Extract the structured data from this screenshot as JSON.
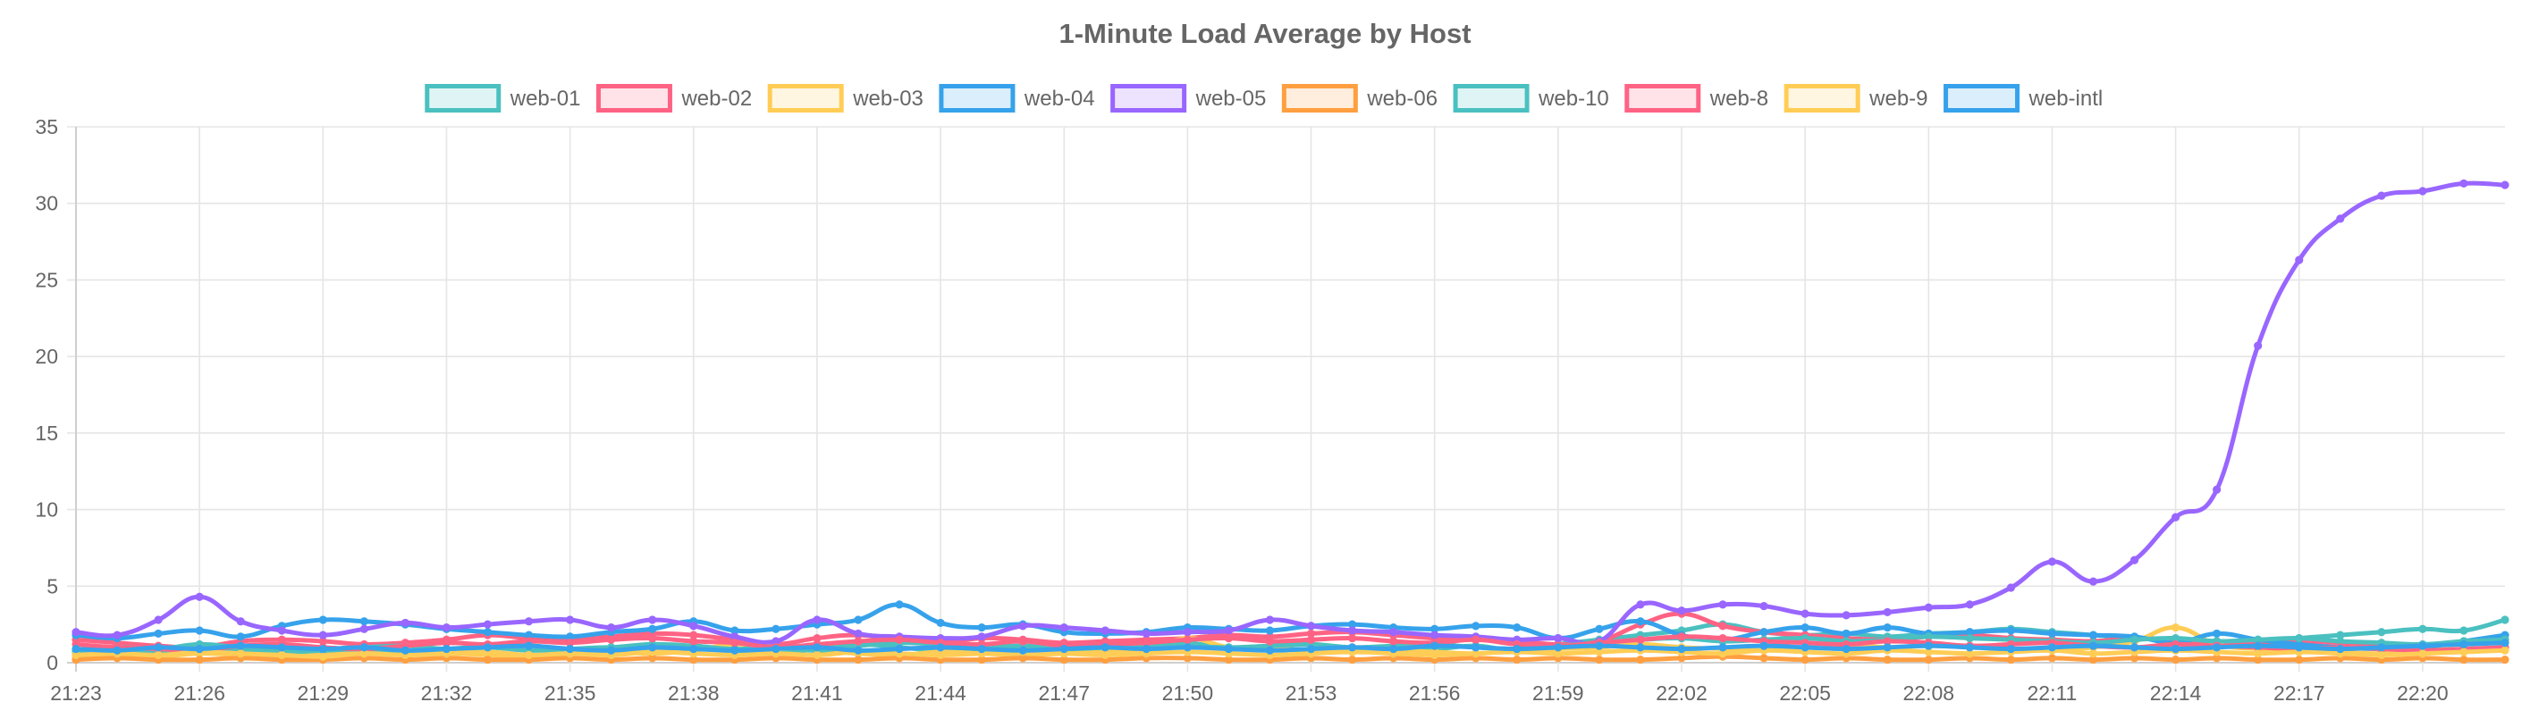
{
  "chart_data": {
    "type": "line",
    "title": "1-Minute Load Average by Host",
    "xlabel": "",
    "ylabel": "",
    "ylim": [
      0,
      35
    ],
    "yticks": [
      "0",
      "5",
      "10",
      "15",
      "20",
      "25",
      "30",
      "35"
    ],
    "xtick_labels": [
      "21:23",
      "21:26",
      "21:29",
      "21:32",
      "21:35",
      "21:38",
      "21:41",
      "21:44",
      "21:47",
      "21:50",
      "21:53",
      "21:56",
      "21:59",
      "22:02",
      "22:05",
      "22:08",
      "22:11",
      "22:14",
      "22:17",
      "22:20"
    ],
    "x": [
      "21:23",
      "21:24",
      "21:25",
      "21:26",
      "21:27",
      "21:28",
      "21:29",
      "21:30",
      "21:31",
      "21:32",
      "21:33",
      "21:34",
      "21:35",
      "21:36",
      "21:37",
      "21:38",
      "21:39",
      "21:40",
      "21:41",
      "21:42",
      "21:43",
      "21:44",
      "21:45",
      "21:46",
      "21:47",
      "21:48",
      "21:49",
      "21:50",
      "21:51",
      "21:52",
      "21:53",
      "21:54",
      "21:55",
      "21:56",
      "21:57",
      "21:58",
      "21:59",
      "22:00",
      "22:01",
      "22:02",
      "22:03",
      "22:04",
      "22:05",
      "22:06",
      "22:07",
      "22:08",
      "22:09",
      "22:10",
      "22:11",
      "22:12",
      "22:13",
      "22:14",
      "22:15",
      "22:16",
      "22:17",
      "22:18",
      "22:19",
      "22:20",
      "22:21",
      "22:22"
    ],
    "grid": true,
    "legend_position": "top",
    "series": [
      {
        "name": "web-01",
        "color": "#4bc0c0",
        "values": [
          0.6,
          0.8,
          0.7,
          0.9,
          0.8,
          0.7,
          0.6,
          0.8,
          0.7,
          0.9,
          1.0,
          0.8,
          0.9,
          1.0,
          0.8,
          1.1,
          0.7,
          0.6,
          0.9,
          1.2,
          1.0,
          0.8,
          0.9,
          1.0,
          0.8,
          0.9,
          1.1,
          1.3,
          0.9,
          1.0,
          1.2,
          0.9,
          1.0,
          0.9,
          1.1,
          0.8,
          1.2,
          1.5,
          1.8,
          2.1,
          2.5,
          2.0,
          1.8,
          1.9,
          1.7,
          1.9,
          2.0,
          2.2,
          2.0,
          1.8,
          1.6,
          1.5,
          1.4,
          1.3,
          1.6,
          1.8,
          2.0,
          2.2,
          2.1,
          2.8
        ]
      },
      {
        "name": "web-02",
        "color": "#ff6384",
        "values": [
          1.5,
          1.3,
          1.1,
          1.0,
          1.4,
          1.5,
          1.4,
          1.2,
          1.3,
          1.5,
          1.8,
          1.6,
          1.5,
          1.7,
          1.9,
          1.8,
          1.5,
          1.2,
          1.6,
          1.8,
          1.5,
          1.3,
          1.6,
          1.5,
          1.3,
          1.4,
          1.5,
          1.6,
          1.8,
          1.7,
          1.9,
          2.0,
          1.8,
          1.6,
          1.5,
          1.4,
          1.2,
          1.4,
          2.5,
          3.2,
          2.4,
          2.0,
          1.8,
          1.6,
          1.5,
          1.7,
          1.8,
          1.6,
          1.5,
          1.4,
          1.6,
          1.5,
          1.3,
          1.2,
          1.4,
          1.3,
          1.2,
          1.1,
          1.3,
          1.5
        ]
      },
      {
        "name": "web-03",
        "color": "#ffcd56",
        "values": [
          0.4,
          0.5,
          0.4,
          0.6,
          0.5,
          0.4,
          0.5,
          0.6,
          0.5,
          0.6,
          0.5,
          0.4,
          0.6,
          0.7,
          0.6,
          0.8,
          1.2,
          1.0,
          0.8,
          0.6,
          0.5,
          0.7,
          0.6,
          0.5,
          0.6,
          0.7,
          0.8,
          1.6,
          1.0,
          0.9,
          0.8,
          0.7,
          0.8,
          0.7,
          0.6,
          0.8,
          0.9,
          1.0,
          1.2,
          1.0,
          0.9,
          0.8,
          1.0,
          1.2,
          1.0,
          1.1,
          1.0,
          0.9,
          0.8,
          1.0,
          1.4,
          2.3,
          1.2,
          0.9,
          0.8,
          0.7,
          0.6,
          0.8,
          0.9,
          1.0
        ]
      },
      {
        "name": "web-04",
        "color": "#36a2eb",
        "values": [
          1.8,
          1.6,
          1.9,
          2.1,
          1.7,
          2.4,
          2.8,
          2.7,
          2.5,
          2.2,
          2.0,
          1.8,
          1.7,
          2.0,
          2.2,
          2.7,
          2.1,
          2.2,
          2.5,
          2.8,
          3.8,
          2.6,
          2.3,
          2.5,
          2.0,
          1.9,
          2.0,
          2.3,
          2.2,
          2.1,
          2.4,
          2.5,
          2.3,
          2.2,
          2.4,
          2.3,
          1.6,
          2.2,
          2.7,
          1.8,
          1.5,
          2.0,
          2.3,
          1.9,
          2.3,
          1.9,
          2.0,
          2.1,
          1.9,
          1.8,
          1.7,
          1.3,
          1.9,
          1.5,
          1.2,
          1.0,
          0.9,
          1.0,
          1.4,
          1.8
        ]
      },
      {
        "name": "web-05",
        "color": "#9966ff",
        "values": [
          2.0,
          1.8,
          2.8,
          4.3,
          2.7,
          2.1,
          1.8,
          2.2,
          2.6,
          2.3,
          2.5,
          2.7,
          2.8,
          2.3,
          2.8,
          2.4,
          1.7,
          1.4,
          2.8,
          1.9,
          1.7,
          1.6,
          1.7,
          2.4,
          2.3,
          2.1,
          1.9,
          2.0,
          2.1,
          2.8,
          2.4,
          2.1,
          2.0,
          1.8,
          1.7,
          1.5,
          1.6,
          1.4,
          3.8,
          3.4,
          3.8,
          3.7,
          3.2,
          3.1,
          3.3,
          3.6,
          3.8,
          4.9,
          6.6,
          5.3,
          6.7,
          9.5,
          11.3,
          20.7,
          26.3,
          29.0,
          30.5,
          30.8,
          31.3,
          31.2
        ]
      },
      {
        "name": "web-06",
        "color": "#ff9f40",
        "values": [
          0.2,
          0.3,
          0.2,
          0.2,
          0.3,
          0.2,
          0.2,
          0.3,
          0.2,
          0.3,
          0.2,
          0.2,
          0.3,
          0.2,
          0.3,
          0.2,
          0.2,
          0.3,
          0.2,
          0.2,
          0.3,
          0.2,
          0.2,
          0.3,
          0.2,
          0.2,
          0.3,
          0.3,
          0.2,
          0.2,
          0.3,
          0.2,
          0.3,
          0.2,
          0.3,
          0.2,
          0.3,
          0.2,
          0.2,
          0.3,
          0.4,
          0.3,
          0.2,
          0.3,
          0.2,
          0.2,
          0.3,
          0.2,
          0.3,
          0.2,
          0.3,
          0.2,
          0.3,
          0.2,
          0.2,
          0.3,
          0.2,
          0.3,
          0.2,
          0.2
        ]
      },
      {
        "name": "web-10",
        "color": "#4bc0c0",
        "values": [
          0.8,
          1.0,
          0.9,
          1.2,
          1.0,
          0.9,
          0.8,
          1.0,
          1.1,
          0.9,
          1.0,
          1.1,
          0.9,
          1.0,
          1.2,
          1.1,
          0.9,
          1.0,
          0.8,
          1.1,
          1.3,
          1.2,
          1.0,
          1.1,
          0.9,
          1.0,
          1.2,
          1.1,
          1.0,
          1.1,
          1.2,
          1.0,
          1.1,
          1.2,
          1.0,
          0.9,
          1.1,
          1.3,
          1.5,
          1.6,
          1.4,
          1.5,
          1.6,
          1.4,
          1.5,
          1.7,
          1.6,
          1.5,
          1.4,
          1.3,
          1.5,
          1.6,
          1.4,
          1.5,
          1.6,
          1.4,
          1.3,
          1.2,
          1.4,
          1.5
        ]
      },
      {
        "name": "web-8",
        "color": "#ff6384",
        "values": [
          1.2,
          1.0,
          0.9,
          0.8,
          1.1,
          1.2,
          1.0,
          0.9,
          1.1,
          1.3,
          1.2,
          1.4,
          1.3,
          1.5,
          1.6,
          1.4,
          1.3,
          1.0,
          1.2,
          1.4,
          1.5,
          1.3,
          1.2,
          1.4,
          1.1,
          1.2,
          1.3,
          1.5,
          1.6,
          1.4,
          1.5,
          1.6,
          1.4,
          1.3,
          1.5,
          1.2,
          1.1,
          1.3,
          1.5,
          1.7,
          1.6,
          1.4,
          1.3,
          1.2,
          1.4,
          1.3,
          1.1,
          1.2,
          1.3,
          1.1,
          1.0,
          1.2,
          1.1,
          1.0,
          0.9,
          1.0,
          0.9,
          0.8,
          0.9,
          1.0
        ]
      },
      {
        "name": "web-9",
        "color": "#ffcd56",
        "values": [
          0.5,
          0.6,
          0.5,
          0.7,
          0.6,
          0.5,
          0.4,
          0.6,
          0.5,
          0.6,
          0.7,
          0.5,
          0.6,
          0.5,
          0.7,
          0.6,
          0.5,
          0.6,
          0.5,
          0.7,
          0.6,
          0.5,
          0.6,
          0.7,
          0.6,
          0.5,
          0.6,
          0.7,
          0.6,
          0.5,
          0.6,
          0.7,
          0.6,
          0.5,
          0.6,
          0.7,
          0.6,
          0.7,
          0.8,
          0.7,
          0.6,
          0.8,
          0.7,
          0.6,
          0.8,
          0.7,
          0.6,
          0.7,
          0.8,
          0.6,
          0.7,
          0.8,
          0.7,
          0.6,
          0.7,
          0.6,
          0.5,
          0.6,
          0.7,
          0.8
        ]
      },
      {
        "name": "web-intl",
        "color": "#36a2eb",
        "values": [
          0.9,
          0.8,
          1.0,
          0.9,
          1.1,
          1.0,
          0.9,
          1.0,
          0.8,
          0.9,
          1.0,
          1.1,
          0.9,
          0.8,
          1.0,
          0.9,
          0.8,
          0.9,
          1.0,
          0.8,
          0.9,
          1.0,
          0.9,
          0.8,
          0.9,
          1.0,
          0.9,
          1.0,
          0.9,
          0.8,
          0.9,
          1.0,
          0.9,
          1.1,
          1.0,
          0.9,
          1.0,
          1.1,
          1.0,
          0.9,
          1.0,
          1.1,
          1.0,
          0.9,
          1.0,
          1.1,
          1.0,
          0.9,
          1.0,
          1.1,
          1.0,
          0.9,
          1.0,
          1.1,
          1.0,
          0.9,
          1.0,
          1.1,
          1.2,
          1.3
        ]
      }
    ]
  }
}
